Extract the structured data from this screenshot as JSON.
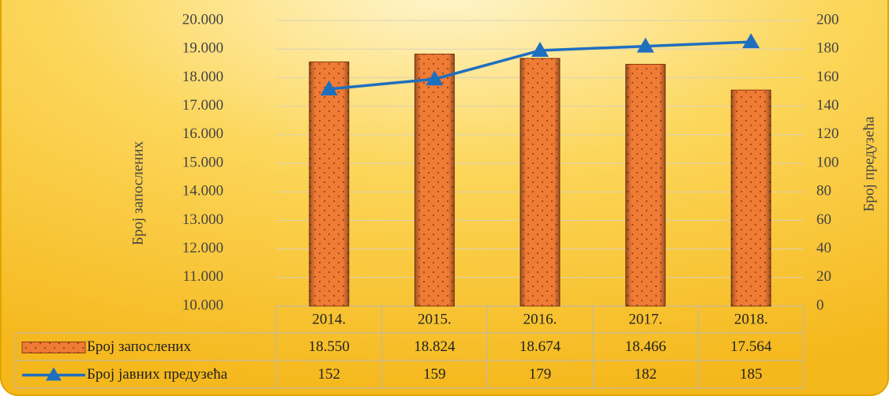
{
  "chart_data": {
    "type": "bar",
    "categories": [
      "2014.",
      "2015.",
      "2016.",
      "2017.",
      "2018."
    ],
    "series": [
      {
        "name": "Број запослених",
        "type": "bar",
        "color": "#f07b35",
        "values": [
          18550,
          18824,
          18674,
          18466,
          17564
        ],
        "value_labels": [
          "18.550",
          "18.824",
          "18.674",
          "18.466",
          "17.564"
        ]
      },
      {
        "name": "Број јавних предузећа",
        "type": "line",
        "axis": "y2",
        "color": "#1f6fbf",
        "values": [
          152,
          159,
          179,
          182,
          185
        ]
      }
    ],
    "ylabel": "Број запослених",
    "y2label": "Број предузећа",
    "ylim": [
      10000,
      20000
    ],
    "yticks": [
      {
        "value": 10000,
        "label": "10.000"
      },
      {
        "value": 11000,
        "label": "11.000"
      },
      {
        "value": 12000,
        "label": "12.000"
      },
      {
        "value": 13000,
        "label": "13.000"
      },
      {
        "value": 14000,
        "label": "14.000"
      },
      {
        "value": 15000,
        "label": "15.000"
      },
      {
        "value": 16000,
        "label": "16.000"
      },
      {
        "value": 17000,
        "label": "17.000"
      },
      {
        "value": 18000,
        "label": "18.000"
      },
      {
        "value": 19000,
        "label": "19.000"
      },
      {
        "value": 20000,
        "label": "20.000"
      }
    ],
    "y2lim": [
      0,
      200
    ],
    "y2ticks": [
      0,
      20,
      40,
      60,
      80,
      100,
      120,
      140,
      160,
      180,
      200
    ],
    "grid": true,
    "data_table": true
  }
}
